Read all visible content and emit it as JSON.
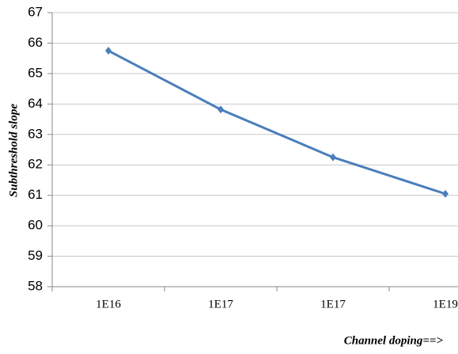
{
  "chart_data": {
    "type": "line",
    "categories": [
      "1E16",
      "1E17",
      "1E17",
      "1E19"
    ],
    "series": [
      {
        "name": "Subthreshold slope",
        "color": "#4a7ebb",
        "values": [
          65.75,
          63.82,
          62.25,
          61.05
        ]
      }
    ],
    "ylim": [
      58,
      67
    ],
    "yticks": [
      58,
      59,
      60,
      61,
      62,
      63,
      64,
      65,
      66,
      67
    ],
    "y_label": "Subthreshold slope",
    "x_label": "Channel doping==>",
    "grid": true
  }
}
